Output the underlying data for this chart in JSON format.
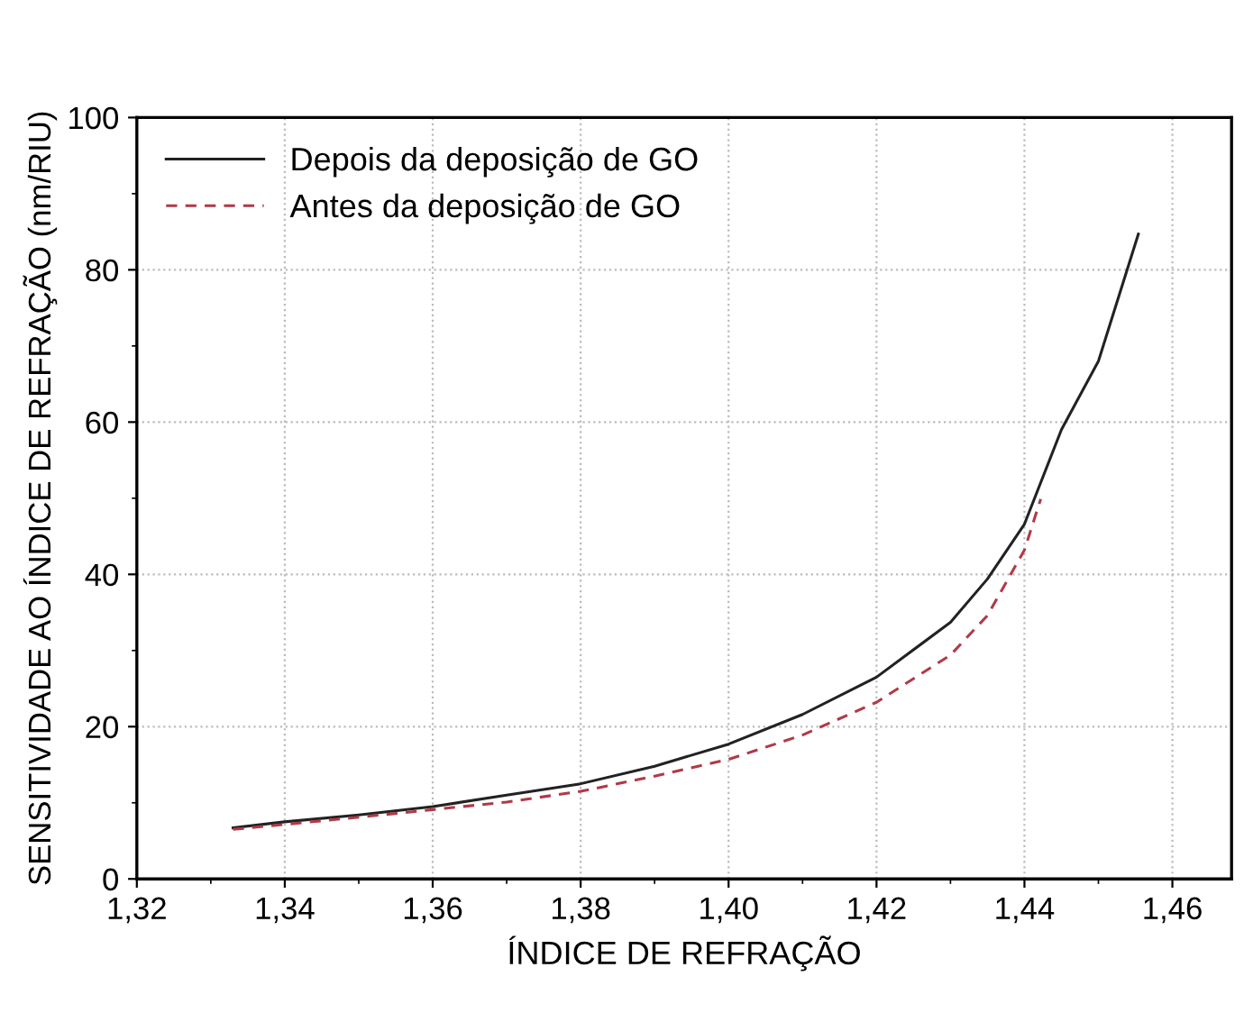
{
  "chart_data": {
    "type": "line",
    "xlabel": "ÍNDICE DE REFRAÇÃO",
    "ylabel": "SENSITIVIDADE AO ÍNDICE DE REFRAÇÃO (nm/RIU)",
    "xlim": [
      1.32,
      1.468
    ],
    "ylim": [
      0,
      100
    ],
    "xticks": [
      {
        "value": 1.32,
        "label": "1,32"
      },
      {
        "value": 1.34,
        "label": "1,34"
      },
      {
        "value": 1.36,
        "label": "1,36"
      },
      {
        "value": 1.38,
        "label": "1,38"
      },
      {
        "value": 1.4,
        "label": "1,40"
      },
      {
        "value": 1.42,
        "label": "1,42"
      },
      {
        "value": 1.44,
        "label": "1,44"
      },
      {
        "value": 1.46,
        "label": "1,46"
      }
    ],
    "yticks": [
      0,
      20,
      40,
      60,
      80,
      100
    ],
    "grid": true,
    "legend": "top left",
    "series": [
      {
        "name": "Depois da deposição de GO",
        "color": "#222222",
        "line_style": "solid",
        "x": [
          1.333,
          1.34,
          1.35,
          1.36,
          1.37,
          1.38,
          1.39,
          1.4,
          1.41,
          1.42,
          1.43,
          1.435,
          1.44,
          1.445,
          1.45,
          1.4554
        ],
        "values": [
          6.7,
          7.5,
          8.4,
          9.5,
          11,
          12.5,
          14.8,
          17.7,
          21.6,
          26.5,
          33.7,
          39.4,
          46.6,
          59,
          68,
          84.7
        ]
      },
      {
        "name": "Antes da deposição de GO",
        "color": "#b03a48",
        "line_style": "dashed",
        "x": [
          1.333,
          1.35,
          1.36,
          1.37,
          1.38,
          1.39,
          1.4,
          1.41,
          1.42,
          1.43,
          1.435,
          1.44,
          1.4422
        ],
        "values": [
          6.5,
          8.1,
          9.1,
          10.1,
          11.5,
          13.5,
          15.7,
          18.9,
          23.2,
          29.4,
          34.6,
          43.2,
          49.9
        ]
      }
    ]
  }
}
